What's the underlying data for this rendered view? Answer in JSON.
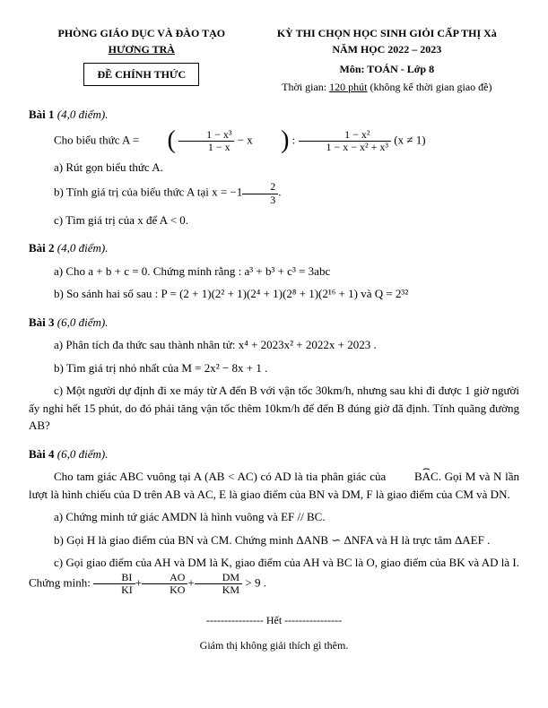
{
  "header": {
    "org_line1": "PHÒNG GIÁO DỤC VÀ ĐÀO TẠO",
    "org_line2": "HƯƠNG TRÀ",
    "box": "ĐỀ CHÍNH THỨC",
    "title_line1": "KỲ THI CHỌN HỌC SINH GIỎI CẤP THỊ Xà",
    "title_line2": "NĂM HỌC 2022 – 2023",
    "subject": "Môn: TOÁN  - Lớp 8",
    "time_label": "Thời gian:",
    "time_value": "120 phút",
    "time_note": "(không kể thời gian giao đề)"
  },
  "bai1": {
    "heading": "Bài 1",
    "score": "(4,0 điểm).",
    "intro": "Cho biểu thức A =",
    "frac1_num": "1 − x³",
    "frac1_den": "1 − x",
    "minus_x": "− x",
    "colon": ":",
    "frac2_num": "1 − x²",
    "frac2_den": "1 − x − x² + x³",
    "cond": "(x ≠ 1)",
    "a": "a) Rút gọn biểu thức A.",
    "b_pre": "b) Tính giá trị của biểu thức A tại x = −1",
    "b_frac_num": "2",
    "b_frac_den": "3",
    "b_dot": ".",
    "c": "c) Tìm giá trị của x để A < 0."
  },
  "bai2": {
    "heading": "Bài 2",
    "score": "(4,0 điểm).",
    "a": "a) Cho a + b + c = 0. Chứng minh rằng : a³ + b³ + c³ = 3abc",
    "b": "b) So sánh hai số sau : P = (2 + 1)(2² + 1)(2⁴ + 1)(2⁸ + 1)(2¹⁶ + 1) và Q = 2³²"
  },
  "bai3": {
    "heading": "Bài 3",
    "score": "(6,0 điểm).",
    "a": "a) Phân tích đa thức sau thành nhân tử:  x⁴ + 2023x² + 2022x + 2023 .",
    "b": "b) Tìm giá trị nhỏ nhất của M = 2x² − 8x + 1 .",
    "c": "c) Một người dự định đi xe máy từ A đến B với vận tốc 30km/h, nhưng sau khi đi được 1 giờ người ấy nghỉ hết 15 phút, do đó phải tăng vận tốc thêm 10km/h để đến B đúng giờ đã định. Tính quãng đường AB?"
  },
  "bai4": {
    "heading": "Bài 4",
    "score": "(6,0 điểm).",
    "p1_pre": "Cho tam giác ABC vuông tại A (AB < AC) có AD là tia phân giác của ",
    "arc": "BAC",
    "p1_post": ". Gọi M và N lần lượt là hình chiếu của D trên AB và AC, E là giao điểm của BN và DM, F là giao điểm của CM và DN.",
    "a": "a) Chứng minh tứ giác AMDN là hình vuông và EF // BC.",
    "b": "b) Gọi H là giao điểm của BN và CM. Chứng minh ΔANB ∽ ΔNFA và H là trực tâm ΔAEF .",
    "c_pre": "c) Gọi giao điểm của AH và DM là K, giao điểm của AH và BC là O, giao điểm của BK và AD là I. Chứng minh:",
    "f1_num": "BI",
    "f1_den": "KI",
    "f2_num": "AO",
    "f2_den": "KO",
    "f3_num": "DM",
    "f3_den": "KM",
    "c_post": "> 9 ."
  },
  "footer": {
    "sep": "---------------- Hết ----------------",
    "note": "Giám thị không giải thích gì thêm."
  }
}
